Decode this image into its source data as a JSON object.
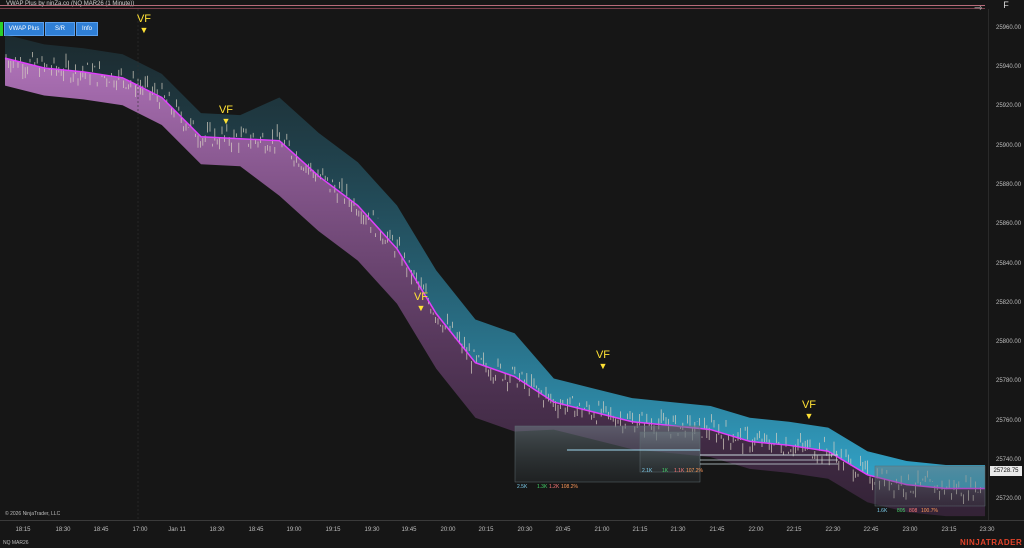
{
  "header": {
    "title": "VWAP Plus by ninZa.co (NQ MAR26 (1 Minute))",
    "top_right_label": "",
    "corner_letter": "F"
  },
  "buttons": [
    {
      "label": "VWAP Plus"
    },
    {
      "label": "S/R"
    },
    {
      "label": "Info"
    }
  ],
  "instrument": "NQ MAR26",
  "copyright": "© 2026 NinjaTrader, LLC",
  "brand": "NINJATRADER",
  "current_price_label": "25728.75",
  "colors": {
    "background": "#161616",
    "candle": "#d9d2c4",
    "vwap_line": "#e040fb",
    "band_lower": "#c982d4",
    "band_upper_bull": "#35b6e0",
    "signal": "#ffe135",
    "brand": "#e2432a"
  },
  "chart_data": {
    "type": "line",
    "x_ticks": [
      "18:15",
      "18:30",
      "18:45",
      "17:00",
      "Jan 11",
      "18:30",
      "18:45",
      "19:00",
      "19:15",
      "19:30",
      "19:45",
      "20:00",
      "20:15",
      "20:30",
      "20:45",
      "21:00",
      "21:15",
      "21:30",
      "21:45",
      "22:00",
      "22:15",
      "22:30",
      "22:45",
      "23:00",
      "23:15",
      "23:30"
    ],
    "y_ticks": [
      25960.0,
      25940.0,
      25920.0,
      25900.0,
      25880.0,
      25860.0,
      25840.0,
      25820.0,
      25800.0,
      25780.0,
      25760.0,
      25740.0,
      25720.0
    ],
    "ylim": [
      25710,
      25970
    ],
    "series": [
      {
        "name": "",
        "x": [
          "18:15",
          "18:30",
          "18:45",
          "17:00",
          "18:15",
          "18:30",
          "18:45",
          "19:00",
          "19:15",
          "19:30",
          "19:45",
          "20:00",
          "20:15",
          "20:30",
          "20:45",
          "21:00",
          "21:15",
          "21:30",
          "21:45",
          "22:00",
          "22:15",
          "22:30",
          "22:45",
          "23:00",
          "23:15",
          "23:30"
        ],
        "values": [
          25945,
          25940,
          25938,
          25935,
          25925,
          25905,
          25904,
          25903,
          25885,
          25870,
          25848,
          25815,
          25790,
          25783,
          25770,
          25765,
          25760,
          25758,
          25756,
          25750,
          25748,
          25745,
          25733,
          25728,
          25726,
          25726
        ]
      }
    ],
    "signals": [
      {
        "label": "VF",
        "x": "17:00"
      },
      {
        "label": "VF",
        "x": "18:15"
      },
      {
        "label": "VF",
        "x": "19:45"
      },
      {
        "label": "VF",
        "x": "21:00"
      },
      {
        "label": "VF",
        "x": "22:15"
      }
    ],
    "volume_boxes": [
      {
        "total": "2.5K",
        "buy": "1.3K",
        "sell": "1.2K",
        "pct": "108.2%"
      },
      {
        "total": "2.1K",
        "buy": "1K",
        "sell": "1.1K",
        "pct": "107.2%"
      },
      {
        "total": "1.6K",
        "buy": "805",
        "sell": "808",
        "pct": "100.7%"
      }
    ],
    "grid": false,
    "legend": "none"
  }
}
